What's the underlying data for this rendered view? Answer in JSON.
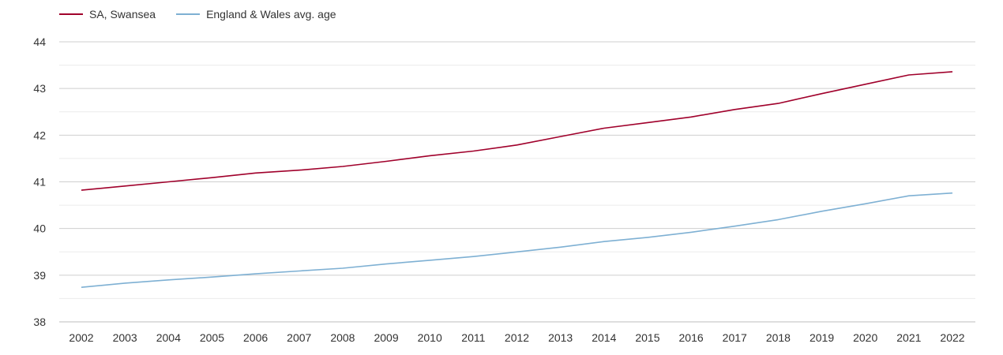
{
  "chart_data": {
    "type": "line",
    "title": "",
    "xlabel": "",
    "ylabel": "",
    "x": [
      2002,
      2003,
      2004,
      2005,
      2006,
      2007,
      2008,
      2009,
      2010,
      2011,
      2012,
      2013,
      2014,
      2015,
      2016,
      2017,
      2018,
      2019,
      2020,
      2021,
      2022
    ],
    "ylim": [
      38,
      44
    ],
    "yticks": [
      38,
      39,
      40,
      41,
      42,
      43,
      44
    ],
    "grid": true,
    "legend_position": "top-left",
    "series": [
      {
        "name": "SA, Swansea",
        "color": "#a0002b",
        "values": [
          40.82,
          40.91,
          41.0,
          41.09,
          41.19,
          41.25,
          41.33,
          41.44,
          41.56,
          41.66,
          41.79,
          41.97,
          42.15,
          42.27,
          42.39,
          42.55,
          42.68,
          42.89,
          43.09,
          43.29,
          43.36
        ]
      },
      {
        "name": "England & Wales avg. age",
        "color": "#7eb0d3",
        "values": [
          38.74,
          38.83,
          38.9,
          38.96,
          39.03,
          39.09,
          39.15,
          39.24,
          39.32,
          39.4,
          39.5,
          39.6,
          39.72,
          39.81,
          39.92,
          40.05,
          40.19,
          40.37,
          40.53,
          40.7,
          40.76
        ]
      }
    ]
  }
}
